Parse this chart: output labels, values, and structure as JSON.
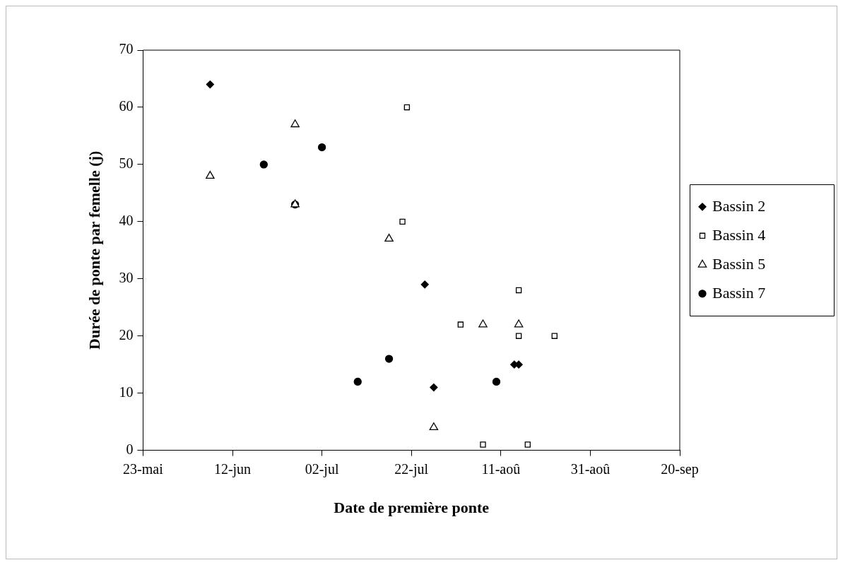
{
  "chart_data": {
    "type": "scatter",
    "xlabel": "Date de première ponte",
    "ylabel": "Durée de ponte par femelle (j)",
    "xlim": [
      "--05-23",
      "--09-20"
    ],
    "xticks": [
      {
        "value": "--05-23",
        "label": "23-mai"
      },
      {
        "value": "--06-12",
        "label": "12-jun"
      },
      {
        "value": "--07-02",
        "label": "02-jul"
      },
      {
        "value": "--07-22",
        "label": "22-jul"
      },
      {
        "value": "--08-11",
        "label": "11-aoû"
      },
      {
        "value": "--08-31",
        "label": "31-aoû"
      },
      {
        "value": "--09-20",
        "label": "20-sep"
      }
    ],
    "ylim": [
      0,
      70
    ],
    "yticks": [
      0,
      10,
      20,
      30,
      40,
      50,
      60,
      70
    ],
    "grid": false,
    "legend": "right",
    "series": [
      {
        "name": "Bassin 2",
        "color": "#000000",
        "marker": "diamond",
        "x": [
          "--06-07",
          "--07-25",
          "--07-27",
          "--08-14",
          "--08-15"
        ],
        "values": [
          64,
          29,
          11,
          15,
          15
        ]
      },
      {
        "name": "Bassin 4",
        "color": "#000000",
        "marker": "square",
        "x": [
          "--07-21",
          "--07-20",
          "--08-02",
          "--08-07",
          "--08-15",
          "--08-15",
          "--08-17",
          "--08-23"
        ],
        "values": [
          60,
          40,
          22,
          1,
          28,
          20,
          1,
          20
        ]
      },
      {
        "name": "Bassin 5",
        "color": "#000000",
        "marker": "triangle",
        "x": [
          "--06-07",
          "--06-26",
          "--06-26",
          "--07-17",
          "--08-07",
          "--08-15",
          "--07-27"
        ],
        "values": [
          48,
          57,
          43,
          37,
          22,
          22,
          4
        ]
      },
      {
        "name": "Bassin 7",
        "color": "#000000",
        "marker": "circle",
        "x": [
          "--06-19",
          "--06-26",
          "--07-02",
          "--07-10",
          "--07-17",
          "--08-10"
        ],
        "values": [
          50,
          43,
          53,
          12,
          16,
          12
        ]
      }
    ]
  }
}
